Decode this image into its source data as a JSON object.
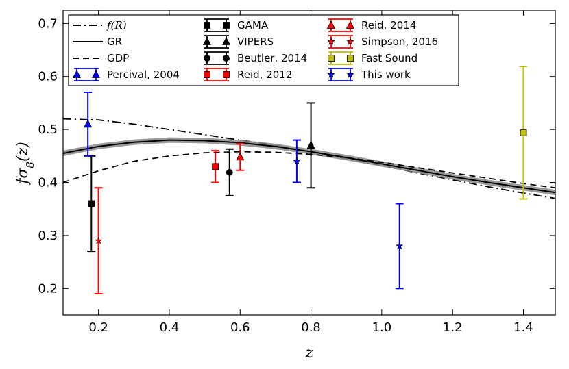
{
  "chart_data": {
    "type": "scatter",
    "title": "",
    "xlabel": "z",
    "ylabel": "fσ8(z)",
    "xlim": [
      0.1,
      1.49
    ],
    "ylim": [
      0.15,
      0.725
    ],
    "xticks": [
      0.2,
      0.4,
      0.6,
      0.8,
      1.0,
      1.2,
      1.4
    ],
    "yticks": [
      0.2,
      0.3,
      0.4,
      0.5,
      0.6,
      0.7
    ],
    "xtick_labels": [
      "0.2",
      "0.4",
      "0.6",
      "0.8",
      "1.0",
      "1.2",
      "1.4"
    ],
    "ytick_labels": [
      "0.2",
      "0.3",
      "0.4",
      "0.5",
      "0.6",
      "0.7"
    ],
    "legend_position": "top",
    "curves": [
      {
        "name": "f(R)",
        "style": "dashdot",
        "color": "#000000",
        "x": [
          0.1,
          0.2,
          0.3,
          0.4,
          0.5,
          0.6,
          0.7,
          0.8,
          0.9,
          1.0,
          1.1,
          1.2,
          1.3,
          1.4,
          1.49
        ],
        "y": [
          0.52,
          0.518,
          0.51,
          0.5,
          0.49,
          0.48,
          0.47,
          0.458,
          0.445,
          0.432,
          0.418,
          0.405,
          0.392,
          0.38,
          0.37
        ]
      },
      {
        "name": "GR",
        "style": "solid",
        "color": "#000000",
        "x": [
          0.1,
          0.2,
          0.3,
          0.4,
          0.5,
          0.6,
          0.7,
          0.8,
          0.9,
          1.0,
          1.1,
          1.2,
          1.3,
          1.4,
          1.49
        ],
        "y": [
          0.455,
          0.468,
          0.476,
          0.48,
          0.479,
          0.475,
          0.468,
          0.458,
          0.447,
          0.435,
          0.423,
          0.411,
          0.4,
          0.39,
          0.381
        ]
      },
      {
        "name": "GDP",
        "style": "dashed",
        "color": "#000000",
        "x": [
          0.1,
          0.2,
          0.3,
          0.4,
          0.5,
          0.6,
          0.7,
          0.8,
          0.9,
          1.0,
          1.1,
          1.2,
          1.3,
          1.4,
          1.49
        ],
        "y": [
          0.4,
          0.422,
          0.44,
          0.45,
          0.456,
          0.458,
          0.457,
          0.453,
          0.447,
          0.438,
          0.428,
          0.418,
          0.408,
          0.398,
          0.39
        ]
      }
    ],
    "series": [
      {
        "name": "GAMA",
        "marker": "square",
        "color": "#000000",
        "points": [
          {
            "x": 0.18,
            "y": 0.36,
            "err": 0.09
          }
        ]
      },
      {
        "name": "VIPERS",
        "marker": "triangle",
        "color": "#000000",
        "points": [
          {
            "x": 0.8,
            "y": 0.47,
            "err": 0.08
          }
        ]
      },
      {
        "name": "Beutler, 2014",
        "marker": "circle",
        "color": "#000000",
        "points": [
          {
            "x": 0.57,
            "y": 0.419,
            "err": 0.044
          }
        ]
      },
      {
        "name": "Reid, 2012",
        "marker": "square",
        "color": "#ff0000",
        "points": [
          {
            "x": 0.53,
            "y": 0.43,
            "err": 0.03
          }
        ]
      },
      {
        "name": "Reid, 2014",
        "marker": "triangle",
        "color": "#ff0000",
        "points": [
          {
            "x": 0.6,
            "y": 0.448,
            "err": 0.025
          }
        ]
      },
      {
        "name": "Simpson, 2016",
        "marker": "star",
        "color": "#ff0000",
        "points": [
          {
            "x": 0.2,
            "y": 0.29,
            "err": 0.1
          }
        ]
      },
      {
        "name": "Fast Sound",
        "marker": "square",
        "color": "#bfbf00",
        "points": [
          {
            "x": 1.4,
            "y": 0.494,
            "err": 0.125
          }
        ]
      },
      {
        "name": "Percival, 2004",
        "marker": "triangle",
        "color": "#0000ff",
        "points": [
          {
            "x": 0.17,
            "y": 0.51,
            "err": 0.06
          }
        ]
      },
      {
        "name": "This work",
        "marker": "star",
        "color": "#0000ff",
        "points": [
          {
            "x": 0.76,
            "y": 0.44,
            "err": 0.04
          },
          {
            "x": 1.05,
            "y": 0.28,
            "err": 0.08
          }
        ]
      }
    ],
    "legend": [
      {
        "label": "f(R)",
        "kind": "line",
        "style": "dashdot",
        "color": "#000000",
        "italic": true
      },
      {
        "label": "GR",
        "kind": "line",
        "style": "solid",
        "color": "#000000"
      },
      {
        "label": "GDP",
        "kind": "line",
        "style": "dashed",
        "color": "#000000"
      },
      {
        "label": "Percival, 2004",
        "kind": "marker",
        "marker": "triangle",
        "color": "#0000ff"
      },
      {
        "label": "GAMA",
        "kind": "marker",
        "marker": "square",
        "color": "#000000"
      },
      {
        "label": "VIPERS",
        "kind": "marker",
        "marker": "triangle",
        "color": "#000000"
      },
      {
        "label": "Beutler, 2014",
        "kind": "marker",
        "marker": "circle",
        "color": "#000000"
      },
      {
        "label": "Reid, 2012",
        "kind": "marker",
        "marker": "square",
        "color": "#ff0000"
      },
      {
        "label": "Reid, 2014",
        "kind": "marker",
        "marker": "triangle",
        "color": "#ff0000"
      },
      {
        "label": "Simpson, 2016",
        "kind": "marker",
        "marker": "star",
        "color": "#ff0000"
      },
      {
        "label": "Fast Sound",
        "kind": "marker",
        "marker": "square",
        "color": "#bfbf00"
      },
      {
        "label": "This work",
        "kind": "marker",
        "marker": "star",
        "color": "#0000ff"
      }
    ]
  }
}
